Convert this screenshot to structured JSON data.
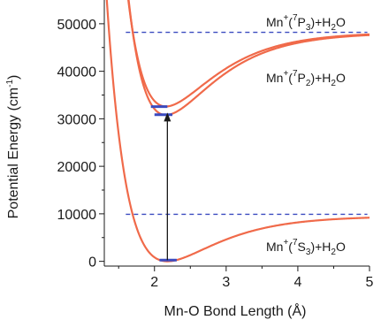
{
  "chart_data": {
    "type": "line",
    "xlabel": "Mn-O Bond Length (Å)",
    "ylabel": "Potential Energy (cm",
    "ylabel_exp": "-1",
    "ylabel_close": ")",
    "xlim": [
      1.3,
      5.0
    ],
    "ylim": [
      -1000,
      55000
    ],
    "x_ticks": [
      2,
      3,
      4,
      5
    ],
    "x_tick_labels": [
      "2",
      "3",
      "4",
      "5"
    ],
    "y_ticks": [
      0,
      10000,
      20000,
      30000,
      40000,
      50000
    ],
    "y_tick_labels": [
      "0",
      "10000",
      "20000",
      "30000",
      "40000",
      "50000"
    ],
    "curves": [
      {
        "state": "7S3",
        "De": 9500,
        "re": 2.18,
        "a": 1.45,
        "offset": 0,
        "color": "#f06a4a"
      },
      {
        "state": "7P2",
        "De": 17300,
        "re": 2.16,
        "a": 1.5,
        "offset": 30800,
        "color": "#f06a4a"
      },
      {
        "state": "7P3",
        "De": 15600,
        "re": 2.16,
        "a": 1.5,
        "offset": 32600,
        "color": "#f06a4a"
      }
    ],
    "dissociation_lines": [
      {
        "y": 48200,
        "x_start": 1.6,
        "x_end": 4.97,
        "color": "#3b4bc0"
      },
      {
        "y": 9900,
        "x_start": 1.6,
        "x_end": 4.97,
        "color": "#3b4bc0"
      }
    ],
    "vibrational_levels": [
      {
        "y": 250,
        "x_start": 2.07,
        "x_end": 2.31,
        "color": "#3b4bc0"
      },
      {
        "y": 30850,
        "x_start": 2.0,
        "x_end": 2.25,
        "color": "#3b4bc0"
      },
      {
        "y": 32550,
        "x_start": 1.95,
        "x_end": 2.18,
        "color": "#3b4bc0"
      }
    ],
    "transition_arrow": {
      "x": 2.18,
      "y_from": 250,
      "y_to": 31300,
      "color": "#1a1a1a"
    },
    "labels": [
      {
        "base": "Mn",
        "sup1": "+",
        "paren_open": "(",
        "sup2": "7",
        "letter": "P",
        "sub": "3",
        "tail": ")+H",
        "sub2": "2",
        "end": "O"
      },
      {
        "base": "Mn",
        "sup1": "+",
        "paren_open": "(",
        "sup2": "7",
        "letter": "P",
        "sub": "2",
        "tail": ")+H",
        "sub2": "2",
        "end": "O"
      },
      {
        "base": "Mn",
        "sup1": "+",
        "paren_open": "(",
        "sup2": "7",
        "letter": "S",
        "sub": "3",
        "tail": ")+H",
        "sub2": "2",
        "end": "O"
      }
    ]
  }
}
